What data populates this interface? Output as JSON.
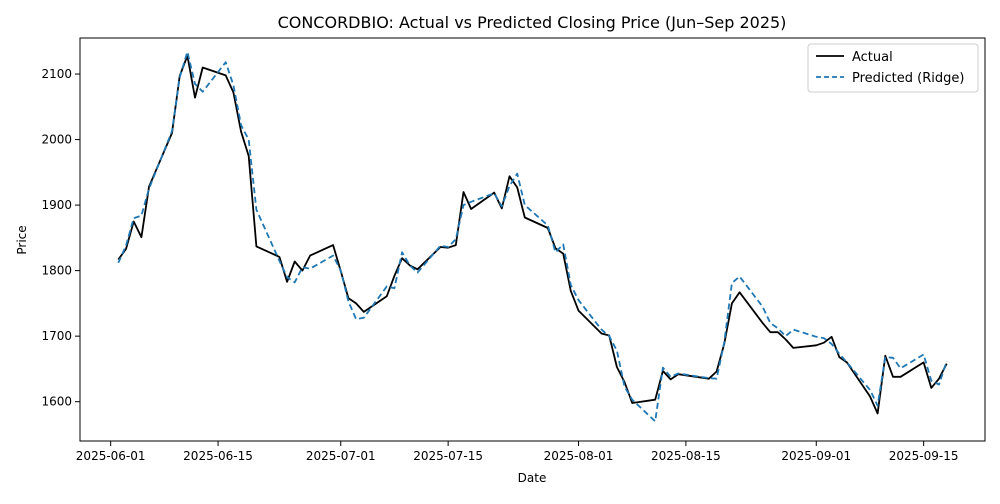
{
  "chart_data": {
    "type": "line",
    "title": "CONCORDBIO: Actual vs Predicted Closing Price (Jun–Sep 2025)",
    "xlabel": "Date",
    "ylabel": "Price",
    "x_ticks": [
      "2025-06-01",
      "2025-06-15",
      "2025-07-01",
      "2025-07-15",
      "2025-08-01",
      "2025-08-15",
      "2025-09-01",
      "2025-09-15"
    ],
    "y_ticks": [
      1600,
      1700,
      1800,
      1900,
      2000,
      2100
    ],
    "xlim": [
      "2025-05-28",
      "2025-09-23"
    ],
    "ylim": [
      1540,
      2155
    ],
    "grid": false,
    "legend_position": "top-right",
    "series": [
      {
        "name": "Actual",
        "color": "#000000",
        "style": "solid",
        "points": [
          [
            "2025-06-02",
            1817
          ],
          [
            "2025-06-03",
            1833
          ],
          [
            "2025-06-04",
            1875
          ],
          [
            "2025-06-05",
            1851
          ],
          [
            "2025-06-06",
            1928
          ],
          [
            "2025-06-09",
            2010
          ],
          [
            "2025-06-10",
            2097
          ],
          [
            "2025-06-11",
            2128
          ],
          [
            "2025-06-12",
            2064
          ],
          [
            "2025-06-13",
            2110
          ],
          [
            "2025-06-16",
            2098
          ],
          [
            "2025-06-17",
            2072
          ],
          [
            "2025-06-18",
            2012
          ],
          [
            "2025-06-19",
            1975
          ],
          [
            "2025-06-20",
            1837
          ],
          [
            "2025-06-23",
            1821
          ],
          [
            "2025-06-24",
            1783
          ],
          [
            "2025-06-25",
            1814
          ],
          [
            "2025-06-26",
            1800
          ],
          [
            "2025-06-27",
            1823
          ],
          [
            "2025-06-30",
            1839
          ],
          [
            "2025-07-01",
            1799
          ],
          [
            "2025-07-02",
            1758
          ],
          [
            "2025-07-03",
            1750
          ],
          [
            "2025-07-04",
            1737
          ],
          [
            "2025-07-07",
            1761
          ],
          [
            "2025-07-08",
            1792
          ],
          [
            "2025-07-09",
            1819
          ],
          [
            "2025-07-10",
            1808
          ],
          [
            "2025-07-11",
            1802
          ],
          [
            "2025-07-14",
            1836
          ],
          [
            "2025-07-15",
            1835
          ],
          [
            "2025-07-16",
            1839
          ],
          [
            "2025-07-17",
            1920
          ],
          [
            "2025-07-18",
            1894
          ],
          [
            "2025-07-21",
            1919
          ],
          [
            "2025-07-22",
            1895
          ],
          [
            "2025-07-23",
            1944
          ],
          [
            "2025-07-24",
            1927
          ],
          [
            "2025-07-25",
            1881
          ],
          [
            "2025-07-28",
            1865
          ],
          [
            "2025-07-29",
            1834
          ],
          [
            "2025-07-30",
            1826
          ],
          [
            "2025-07-31",
            1769
          ],
          [
            "2025-08-01",
            1739
          ],
          [
            "2025-08-04",
            1704
          ],
          [
            "2025-08-05",
            1701
          ],
          [
            "2025-08-06",
            1653
          ],
          [
            "2025-08-07",
            1630
          ],
          [
            "2025-08-08",
            1598
          ],
          [
            "2025-08-11",
            1603
          ],
          [
            "2025-08-12",
            1647
          ],
          [
            "2025-08-13",
            1634
          ],
          [
            "2025-08-14",
            1642
          ],
          [
            "2025-08-18",
            1635
          ],
          [
            "2025-08-19",
            1646
          ],
          [
            "2025-08-20",
            1688
          ],
          [
            "2025-08-21",
            1750
          ],
          [
            "2025-08-22",
            1767
          ],
          [
            "2025-08-25",
            1720
          ],
          [
            "2025-08-26",
            1706
          ],
          [
            "2025-08-27",
            1706
          ],
          [
            "2025-08-28",
            1695
          ],
          [
            "2025-08-29",
            1682
          ],
          [
            "2025-09-01",
            1686
          ],
          [
            "2025-09-02",
            1690
          ],
          [
            "2025-09-03",
            1699
          ],
          [
            "2025-09-04",
            1668
          ],
          [
            "2025-09-05",
            1660
          ],
          [
            "2025-09-08",
            1608
          ],
          [
            "2025-09-09",
            1582
          ],
          [
            "2025-09-10",
            1670
          ],
          [
            "2025-09-11",
            1638
          ],
          [
            "2025-09-12",
            1638
          ],
          [
            "2025-09-15",
            1660
          ],
          [
            "2025-09-16",
            1621
          ],
          [
            "2025-09-17",
            1635
          ],
          [
            "2025-09-18",
            1658
          ]
        ]
      },
      {
        "name": "Predicted (Ridge)",
        "color": "#1f77b4",
        "style": "dashed",
        "points": [
          [
            "2025-06-02",
            1812
          ],
          [
            "2025-06-03",
            1838
          ],
          [
            "2025-06-04",
            1880
          ],
          [
            "2025-06-05",
            1884
          ],
          [
            "2025-06-06",
            1925
          ],
          [
            "2025-06-09",
            2013
          ],
          [
            "2025-06-10",
            2095
          ],
          [
            "2025-06-11",
            2134
          ],
          [
            "2025-06-12",
            2085
          ],
          [
            "2025-06-13",
            2073
          ],
          [
            "2025-06-16",
            2118
          ],
          [
            "2025-06-17",
            2083
          ],
          [
            "2025-06-18",
            2022
          ],
          [
            "2025-06-19",
            2000
          ],
          [
            "2025-06-20",
            1893
          ],
          [
            "2025-06-23",
            1815
          ],
          [
            "2025-06-24",
            1790
          ],
          [
            "2025-06-25",
            1782
          ],
          [
            "2025-06-26",
            1805
          ],
          [
            "2025-06-27",
            1803
          ],
          [
            "2025-06-30",
            1823
          ],
          [
            "2025-07-01",
            1800
          ],
          [
            "2025-07-02",
            1753
          ],
          [
            "2025-07-03",
            1726
          ],
          [
            "2025-07-04",
            1728
          ],
          [
            "2025-07-07",
            1776
          ],
          [
            "2025-07-08",
            1773
          ],
          [
            "2025-07-09",
            1828
          ],
          [
            "2025-07-10",
            1808
          ],
          [
            "2025-07-11",
            1797
          ],
          [
            "2025-07-14",
            1838
          ],
          [
            "2025-07-15",
            1836
          ],
          [
            "2025-07-16",
            1848
          ],
          [
            "2025-07-17",
            1900
          ],
          [
            "2025-07-18",
            1905
          ],
          [
            "2025-07-21",
            1918
          ],
          [
            "2025-07-22",
            1898
          ],
          [
            "2025-07-23",
            1929
          ],
          [
            "2025-07-24",
            1948
          ],
          [
            "2025-07-25",
            1900
          ],
          [
            "2025-07-28",
            1869
          ],
          [
            "2025-07-29",
            1828
          ],
          [
            "2025-07-30",
            1840
          ],
          [
            "2025-07-31",
            1778
          ],
          [
            "2025-08-01",
            1755
          ],
          [
            "2025-08-04",
            1710
          ],
          [
            "2025-08-05",
            1700
          ],
          [
            "2025-08-06",
            1678
          ],
          [
            "2025-08-07",
            1623
          ],
          [
            "2025-08-08",
            1603
          ],
          [
            "2025-08-11",
            1570
          ],
          [
            "2025-08-12",
            1652
          ],
          [
            "2025-08-13",
            1638
          ],
          [
            "2025-08-14",
            1643
          ],
          [
            "2025-08-18",
            1636
          ],
          [
            "2025-08-19",
            1635
          ],
          [
            "2025-08-20",
            1690
          ],
          [
            "2025-08-21",
            1781
          ],
          [
            "2025-08-22",
            1791
          ],
          [
            "2025-08-25",
            1745
          ],
          [
            "2025-08-26",
            1720
          ],
          [
            "2025-08-27",
            1712
          ],
          [
            "2025-08-28",
            1700
          ],
          [
            "2025-08-29",
            1710
          ],
          [
            "2025-09-01",
            1699
          ],
          [
            "2025-09-02",
            1697
          ],
          [
            "2025-09-03",
            1688
          ],
          [
            "2025-09-04",
            1673
          ],
          [
            "2025-09-05",
            1660
          ],
          [
            "2025-09-08",
            1618
          ],
          [
            "2025-09-09",
            1594
          ],
          [
            "2025-09-10",
            1668
          ],
          [
            "2025-09-11",
            1667
          ],
          [
            "2025-09-12",
            1651
          ],
          [
            "2025-09-15",
            1672
          ],
          [
            "2025-09-16",
            1632
          ],
          [
            "2025-09-17",
            1626
          ],
          [
            "2025-09-18",
            1662
          ]
        ]
      }
    ]
  }
}
